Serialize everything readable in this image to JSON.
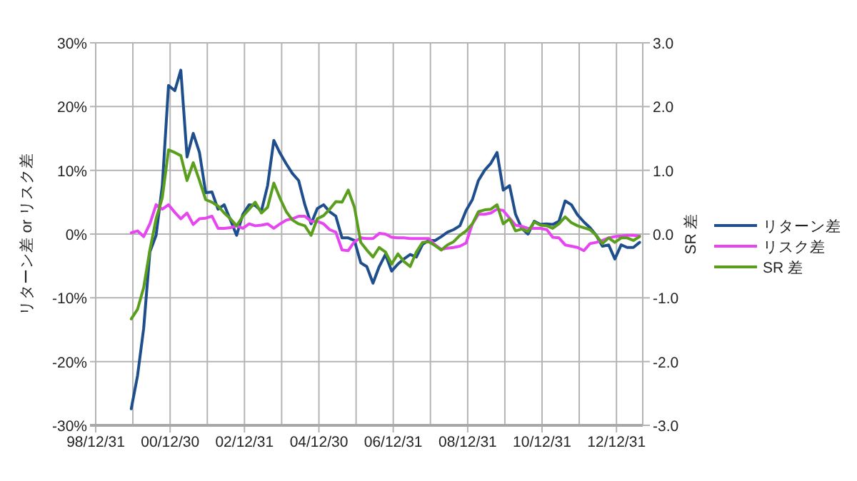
{
  "chart_data": {
    "type": "line",
    "ylabel": "リターン差 or リスク差",
    "y2label": "SR 差",
    "grid": true,
    "legend": "right",
    "line_style": "solid",
    "xlim": [
      "1998-12-31",
      "2013-09-15"
    ],
    "xticks": [
      {
        "value": "1998-12-31",
        "label": "98/12/31"
      },
      {
        "value": "1999-12-31",
        "label": null
      },
      {
        "value": "2000-12-31",
        "label": "00/12/30"
      },
      {
        "value": "2001-12-31",
        "label": null
      },
      {
        "value": "2002-12-31",
        "label": "02/12/31"
      },
      {
        "value": "2003-12-31",
        "label": null
      },
      {
        "value": "2004-12-31",
        "label": "04/12/30"
      },
      {
        "value": "2005-12-31",
        "label": null
      },
      {
        "value": "2006-12-31",
        "label": "06/12/31"
      },
      {
        "value": "2007-12-31",
        "label": null
      },
      {
        "value": "2008-12-31",
        "label": "08/12/31"
      },
      {
        "value": "2009-12-31",
        "label": null
      },
      {
        "value": "2010-12-31",
        "label": "10/12/31"
      },
      {
        "value": "2011-12-31",
        "label": null
      },
      {
        "value": "2012-12-31",
        "label": "12/12/31"
      }
    ],
    "ylim": [
      -30,
      30
    ],
    "yticks": [
      {
        "value": -30,
        "label": "-30%"
      },
      {
        "value": -20,
        "label": "-20%"
      },
      {
        "value": -10,
        "label": "-10%"
      },
      {
        "value": 0,
        "label": "0%"
      },
      {
        "value": 10,
        "label": "10%"
      },
      {
        "value": 20,
        "label": "20%"
      },
      {
        "value": 30,
        "label": "30%"
      }
    ],
    "y2lim": [
      -3,
      3
    ],
    "y2ticks": [
      {
        "value": -3,
        "label": "-3.0"
      },
      {
        "value": -2,
        "label": "-2.0"
      },
      {
        "value": -1,
        "label": "-1.0"
      },
      {
        "value": 0,
        "label": "0.0"
      },
      {
        "value": 1,
        "label": "1.0"
      },
      {
        "value": 2,
        "label": "2.0"
      },
      {
        "value": 3,
        "label": "3.0"
      }
    ],
    "x": [
      "1999-12",
      "2000-02",
      "2000-04",
      "2000-06",
      "2000-08",
      "2000-10",
      "2000-12",
      "2001-02",
      "2001-04",
      "2001-06",
      "2001-08",
      "2001-10",
      "2001-12",
      "2002-02",
      "2002-04",
      "2002-06",
      "2002-08",
      "2002-10",
      "2002-12",
      "2003-02",
      "2003-04",
      "2003-06",
      "2003-08",
      "2003-10",
      "2003-12",
      "2004-02",
      "2004-04",
      "2004-06",
      "2004-08",
      "2004-10",
      "2004-12",
      "2005-02",
      "2005-04",
      "2005-06",
      "2005-08",
      "2005-10",
      "2005-12",
      "2006-02",
      "2006-04",
      "2006-06",
      "2006-08",
      "2006-10",
      "2006-12",
      "2007-02",
      "2007-04",
      "2007-06",
      "2007-08",
      "2007-10",
      "2007-12",
      "2008-02",
      "2008-04",
      "2008-06",
      "2008-08",
      "2008-10",
      "2008-12",
      "2009-02",
      "2009-04",
      "2009-06",
      "2009-08",
      "2009-10",
      "2009-12",
      "2010-02",
      "2010-04",
      "2010-06",
      "2010-08",
      "2010-10",
      "2010-12",
      "2011-02",
      "2011-04",
      "2011-06",
      "2011-08",
      "2011-10",
      "2011-12",
      "2012-02",
      "2012-04",
      "2012-06",
      "2012-08",
      "2012-10",
      "2012-12",
      "2013-02",
      "2013-04",
      "2013-06",
      "2013-08"
    ],
    "series": [
      {
        "name": "リターン差",
        "color": "#1f4e8c",
        "values": [
          -27.4,
          -22.2,
          -14.8,
          -2.8,
          -0.2,
          7.6,
          23.3,
          22.5,
          25.7,
          12.1,
          15.8,
          12.8,
          6.5,
          6.6,
          3.9,
          4.6,
          2.2,
          -0.2,
          3.1,
          4.6,
          4.5,
          3.6,
          7.6,
          14.7,
          12.7,
          11.0,
          9.5,
          8.4,
          4.6,
          1.6,
          4.0,
          4.6,
          3.5,
          2.8,
          -0.6,
          -0.6,
          -1.0,
          -4.5,
          -5.1,
          -7.7,
          -5.1,
          -3.2,
          -5.8,
          -4.7,
          -3.9,
          -3.2,
          -3.6,
          -1.6,
          -1.0,
          -1.0,
          -0.4,
          0.3,
          0.7,
          1.3,
          3.7,
          5.4,
          8.4,
          10.0,
          11.1,
          12.8,
          6.9,
          7.6,
          3.1,
          0.9,
          0.0,
          2.0,
          1.5,
          1.6,
          1.5,
          2.0,
          5.2,
          4.6,
          3.0,
          1.9,
          1.0,
          -0.2,
          -1.9,
          -1.7,
          -3.9,
          -1.7,
          -2.1,
          -2.1,
          -1.3
        ]
      },
      {
        "name": "リスク差",
        "color": "#e645f0",
        "values": [
          0.2,
          0.5,
          -0.4,
          1.6,
          4.6,
          3.9,
          4.6,
          3.4,
          2.4,
          3.3,
          1.5,
          2.4,
          2.5,
          2.8,
          0.9,
          0.9,
          1.0,
          1.3,
          0.9,
          1.6,
          1.3,
          1.4,
          1.6,
          0.9,
          1.6,
          2.2,
          2.4,
          2.8,
          2.8,
          2.0,
          2.0,
          1.6,
          0.7,
          0.3,
          -2.5,
          -2.6,
          -1.2,
          -0.6,
          -0.7,
          -0.7,
          0.1,
          0.0,
          -0.5,
          -0.6,
          -0.6,
          -0.7,
          -0.7,
          -0.7,
          -0.7,
          -1.7,
          -2.4,
          -2.2,
          -2.1,
          -1.9,
          -1.4,
          1.6,
          3.1,
          3.1,
          3.3,
          3.9,
          3.7,
          2.5,
          1.4,
          1.2,
          0.9,
          0.9,
          0.9,
          0.7,
          -0.5,
          -0.6,
          -1.7,
          -1.9,
          -2.1,
          -2.6,
          -1.5,
          -1.3,
          -1.0,
          -0.6,
          -0.4,
          -0.3,
          -0.2,
          -0.2,
          -0.3
        ]
      },
      {
        "name": "SR 差",
        "color": "#5a9e1e",
        "axis": "y2",
        "values": [
          -1.33,
          -1.18,
          -0.84,
          -0.25,
          0.24,
          0.57,
          1.32,
          1.28,
          1.23,
          0.84,
          1.12,
          0.84,
          0.54,
          0.5,
          0.44,
          0.33,
          0.24,
          0.13,
          0.28,
          0.39,
          0.5,
          0.33,
          0.42,
          0.8,
          0.56,
          0.35,
          0.22,
          0.16,
          0.13,
          -0.02,
          0.24,
          0.29,
          0.39,
          0.51,
          0.5,
          0.69,
          0.42,
          -0.13,
          -0.25,
          -0.36,
          -0.21,
          -0.28,
          -0.47,
          -0.31,
          -0.43,
          -0.51,
          -0.28,
          -0.13,
          -0.12,
          -0.18,
          -0.25,
          -0.17,
          -0.12,
          -0.02,
          0.05,
          0.16,
          0.35,
          0.38,
          0.39,
          0.46,
          0.16,
          0.24,
          0.05,
          0.08,
          0.04,
          0.19,
          0.14,
          0.13,
          0.09,
          0.16,
          0.27,
          0.18,
          0.13,
          0.1,
          0.07,
          -0.02,
          -0.15,
          -0.06,
          -0.13,
          -0.06,
          -0.06,
          -0.1,
          -0.04
        ]
      }
    ]
  }
}
